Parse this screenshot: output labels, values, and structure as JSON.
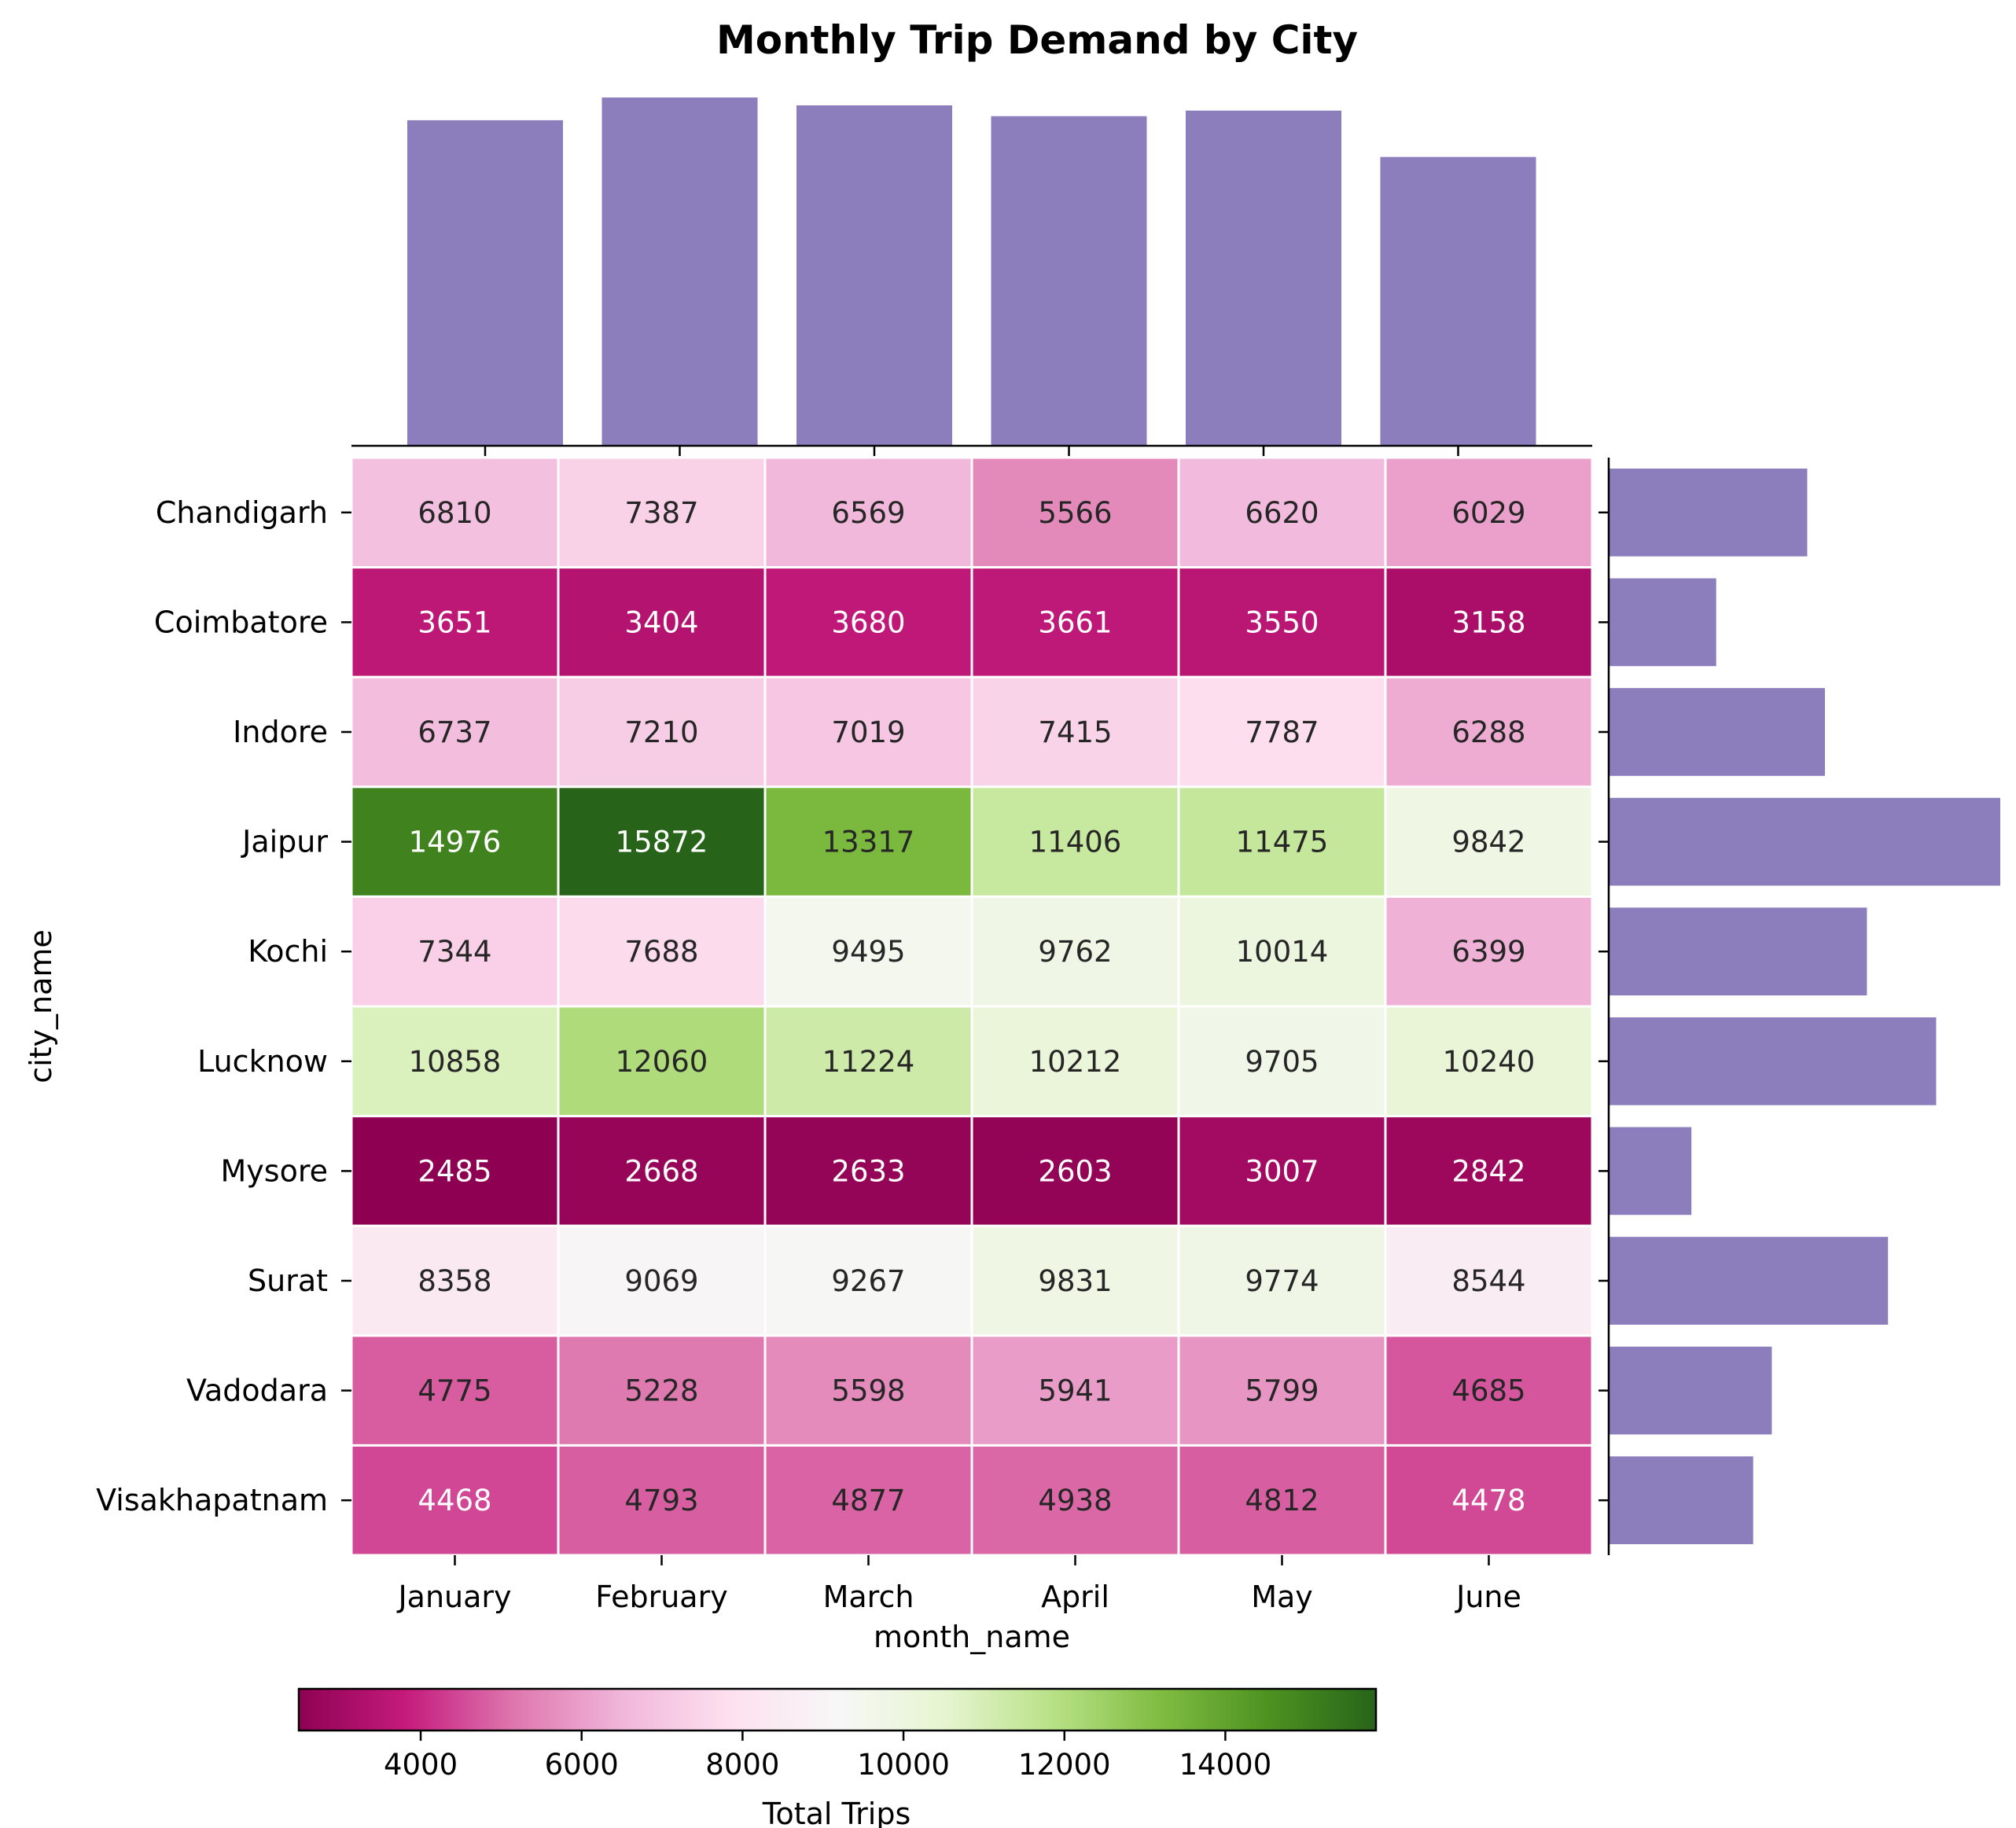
{
  "chart_data": {
    "type": "heatmap",
    "title": "Monthly Trip Demand by City",
    "xlabel": "month_name",
    "ylabel": "city_name",
    "x_categories": [
      "January",
      "February",
      "March",
      "April",
      "May",
      "June"
    ],
    "y_categories": [
      "Chandigarh",
      "Coimbatore",
      "Indore",
      "Jaipur",
      "Kochi",
      "Lucknow",
      "Mysore",
      "Surat",
      "Vadodara",
      "Visakhapatnam"
    ],
    "values": [
      [
        6810,
        7387,
        6569,
        5566,
        6620,
        6029
      ],
      [
        3651,
        3404,
        3680,
        3661,
        3550,
        3158
      ],
      [
        6737,
        7210,
        7019,
        7415,
        7787,
        6288
      ],
      [
        14976,
        15872,
        13317,
        11406,
        11475,
        9842
      ],
      [
        7344,
        7688,
        9495,
        9762,
        10014,
        6399
      ],
      [
        10858,
        12060,
        11224,
        10212,
        9705,
        10240
      ],
      [
        2485,
        2668,
        2633,
        2603,
        3007,
        2842
      ],
      [
        8358,
        9069,
        9267,
        9831,
        9774,
        8544
      ],
      [
        4775,
        5228,
        5598,
        5941,
        5799,
        4685
      ],
      [
        4468,
        4793,
        4877,
        4938,
        4812,
        4478
      ]
    ],
    "colormap": "PiYG",
    "color_range": [
      2485,
      15872
    ],
    "colorbar": {
      "label": "Total Trips",
      "ticks": [
        4000,
        6000,
        8000,
        10000,
        12000,
        14000
      ],
      "placement": "bottom"
    },
    "marginal_top": {
      "type": "bar",
      "aggregate": "column totals",
      "color": "#8c7dbd"
    },
    "marginal_right": {
      "type": "barh",
      "aggregate": "row totals",
      "color": "#8c7dbd"
    },
    "annotations": "cell values shown in each cell"
  }
}
